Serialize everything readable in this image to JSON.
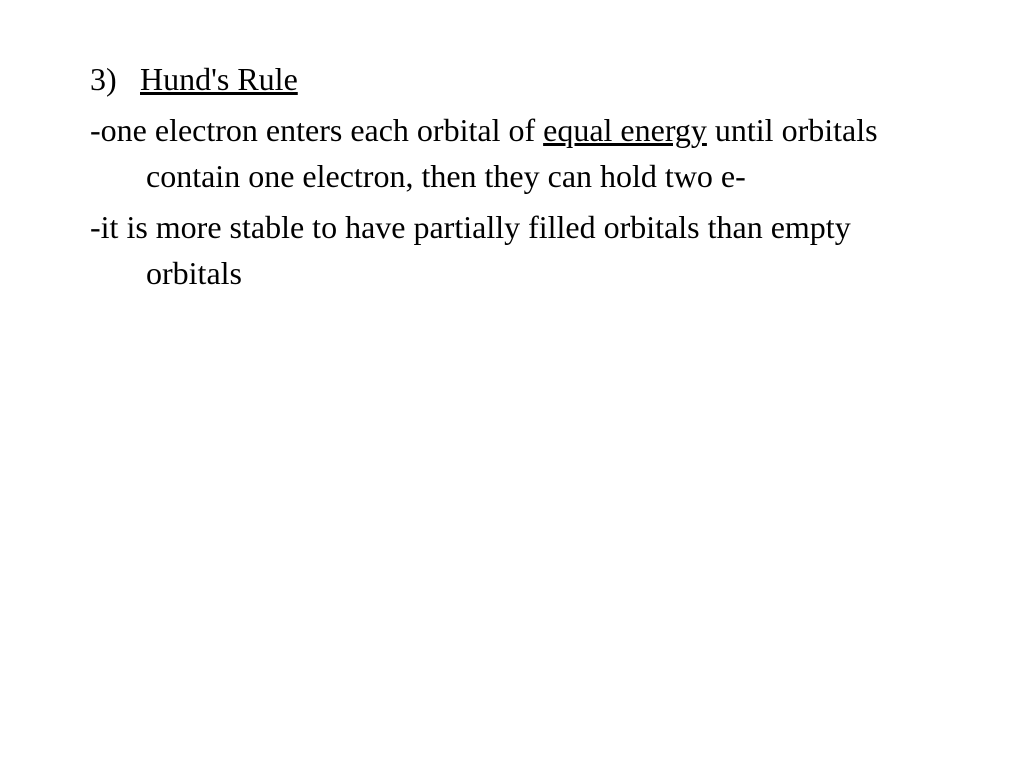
{
  "document": {
    "font_family": "Times New Roman",
    "font_size_pt": 32,
    "text_color": "#000000",
    "background_color": "#ffffff",
    "heading": {
      "number": "3)",
      "title": "Hund's Rule",
      "title_underlined": true
    },
    "bullets": [
      {
        "prefix": "-",
        "segments": [
          {
            "text": "one electron enters each orbital of ",
            "underlined": false
          },
          {
            "text": "equal energy",
            "underlined": true
          },
          {
            "text": " until orbitals contain one electron, then they can hold two e-",
            "underlined": false
          }
        ]
      },
      {
        "prefix": "-",
        "segments": [
          {
            "text": "it is more stable to have partially filled orbitals than empty orbitals",
            "underlined": false
          }
        ]
      }
    ]
  }
}
